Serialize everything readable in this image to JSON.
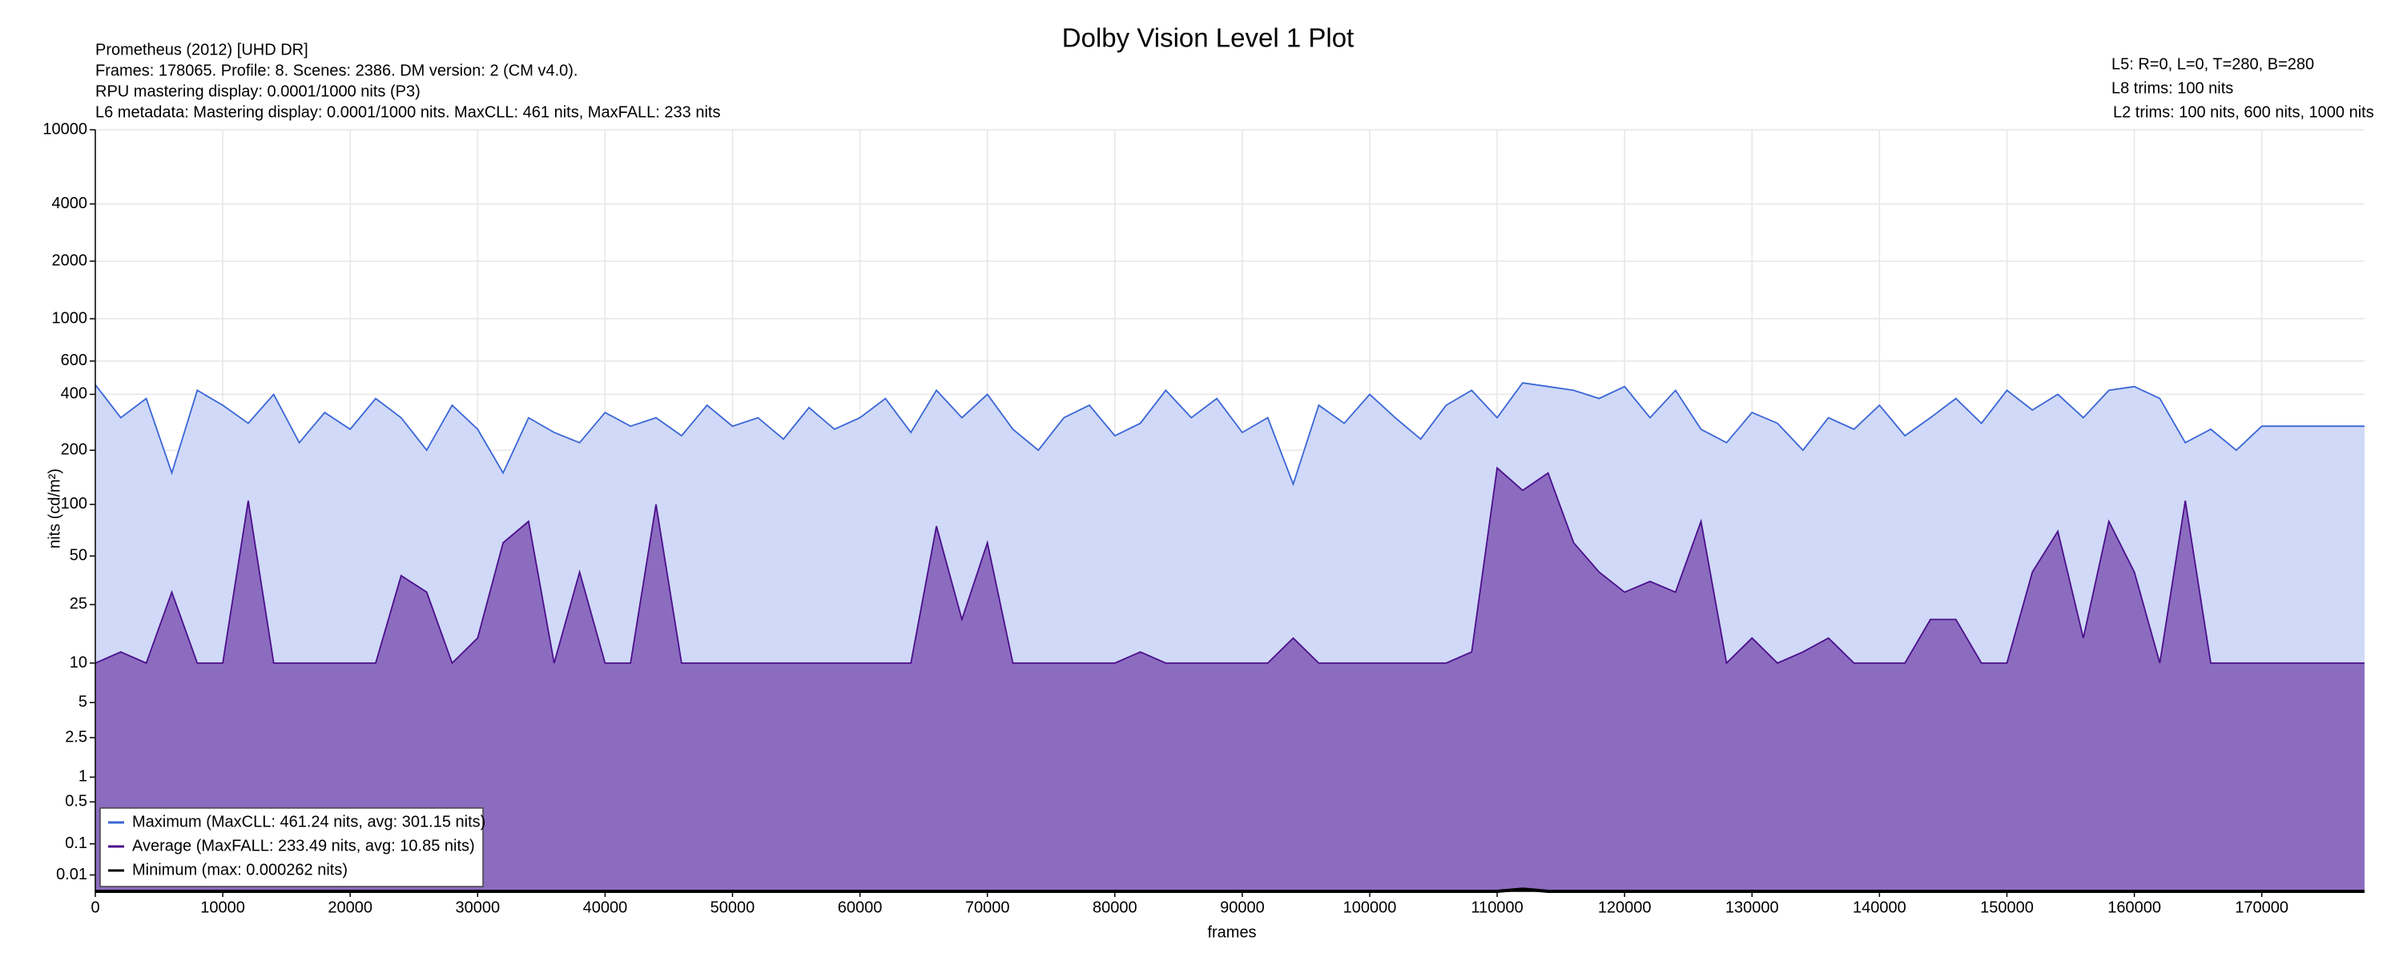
{
  "chart_data": {
    "type": "line",
    "title": "Dolby Vision Level 1 Plot",
    "info_left": [
      "Prometheus (2012) [UHD DR]",
      "Frames: 178065. Profile: 8. Scenes: 2386. DM version: 2 (CM v4.0).",
      "RPU mastering display: 0.0001/1000 nits  (P3)",
      "L6 metadata: Mastering display: 0.0001/1000 nits. MaxCLL: 461 nits, MaxFALL: 233 nits"
    ],
    "info_right": [
      "L5: R=0, L=0, T=280, B=280",
      "L8 trims: 100 nits",
      "L2 trims: 100 nits, 600 nits, 1000 nits"
    ],
    "x_label": "frames",
    "y_label": "nits (cd/m²)",
    "yscale": "pq",
    "grid": true,
    "legend": "lower left",
    "xlim": [
      0,
      178065
    ],
    "xticks": [
      0,
      10000,
      20000,
      30000,
      40000,
      50000,
      60000,
      70000,
      80000,
      90000,
      100000,
      110000,
      120000,
      130000,
      140000,
      150000,
      160000,
      170000
    ],
    "ylim": [
      0,
      10000
    ],
    "yticks": [
      0.01,
      0.1,
      0.5,
      1,
      2.5,
      5,
      10,
      25,
      50,
      100,
      200,
      400,
      600,
      1000,
      2000,
      4000,
      10000
    ],
    "x": [
      0,
      2000,
      4000,
      6000,
      8000,
      10000,
      12000,
      14000,
      16000,
      18000,
      20000,
      22000,
      24000,
      26000,
      28000,
      30000,
      32000,
      34000,
      36000,
      38000,
      40000,
      42000,
      44000,
      46000,
      48000,
      50000,
      52000,
      54000,
      56000,
      58000,
      60000,
      62000,
      64000,
      66000,
      68000,
      70000,
      72000,
      74000,
      76000,
      78000,
      80000,
      82000,
      84000,
      86000,
      88000,
      90000,
      92000,
      94000,
      96000,
      98000,
      100000,
      102000,
      104000,
      106000,
      108000,
      110000,
      112000,
      114000,
      116000,
      118000,
      120000,
      122000,
      124000,
      126000,
      128000,
      130000,
      132000,
      134000,
      136000,
      138000,
      140000,
      142000,
      144000,
      146000,
      148000,
      150000,
      152000,
      154000,
      156000,
      158000,
      160000,
      162000,
      164000,
      166000,
      168000,
      170000,
      172000,
      174000,
      176000,
      178000,
      178065
    ],
    "series": [
      {
        "name": "Maximum (MaxCLL: 461.24 nits, avg: 301.15 nits)",
        "color": "#3a66d6",
        "fill": "#d0d9f7",
        "values": [
          450,
          300,
          380,
          150,
          420,
          350,
          280,
          400,
          220,
          320,
          260,
          380,
          300,
          200,
          350,
          260,
          150,
          300,
          250,
          220,
          320,
          270,
          300,
          240,
          350,
          270,
          300,
          230,
          340,
          260,
          300,
          380,
          250,
          420,
          300,
          400,
          260,
          200,
          300,
          350,
          240,
          280,
          420,
          300,
          380,
          250,
          300,
          130,
          350,
          280,
          400,
          300,
          230,
          350,
          420,
          300,
          460,
          440,
          420,
          380,
          440,
          300,
          420,
          260,
          220,
          320,
          280,
          200,
          300,
          260,
          350,
          240,
          300,
          380,
          280,
          420,
          330,
          400,
          300,
          420,
          440,
          380,
          220,
          260,
          200,
          270,
          270,
          270,
          270,
          270,
          270
        ]
      },
      {
        "name": "Average (MaxFALL: 233.49 nits, avg: 10.85 nits)",
        "color": "#4b0f8c",
        "fill": "#8c6cbf",
        "values": [
          10,
          12,
          10,
          30,
          10,
          10,
          105,
          10,
          10,
          10,
          10,
          10,
          38,
          30,
          10,
          15,
          60,
          80,
          10,
          40,
          10,
          10,
          100,
          10,
          10,
          10,
          10,
          10,
          10,
          10,
          10,
          10,
          10,
          75,
          20,
          60,
          10,
          10,
          10,
          10,
          10,
          12,
          10,
          10,
          10,
          10,
          10,
          15,
          10,
          10,
          10,
          10,
          10,
          10,
          12,
          160,
          120,
          150,
          60,
          40,
          30,
          35,
          30,
          80,
          10,
          15,
          10,
          12,
          15,
          10,
          10,
          10,
          20,
          20,
          10,
          10,
          40,
          70,
          15,
          80,
          40,
          10,
          105,
          10,
          10,
          10,
          10,
          10,
          10,
          10,
          10
        ]
      },
      {
        "name": "Minimum (max: 0.000262 nits)",
        "color": "#000000",
        "values": [
          0,
          0,
          0,
          0,
          0,
          0,
          0,
          0,
          0,
          0,
          0,
          0,
          0,
          0,
          0,
          0,
          0,
          0,
          0,
          0,
          0,
          0,
          0,
          0,
          0,
          0,
          0,
          0,
          0,
          0,
          0,
          0,
          0,
          0,
          0,
          0,
          0,
          0,
          0,
          0,
          0,
          0,
          0,
          0,
          0,
          0,
          0,
          0,
          0,
          0,
          0,
          0,
          0,
          0,
          0,
          0,
          0.000262,
          0,
          0,
          0,
          0,
          0,
          0,
          0,
          0,
          0,
          0,
          0,
          0,
          0,
          0,
          0,
          0,
          0,
          0,
          0,
          0,
          0,
          0,
          0,
          0,
          0,
          0,
          0,
          0,
          0,
          0,
          0,
          0,
          0,
          0
        ]
      }
    ]
  }
}
